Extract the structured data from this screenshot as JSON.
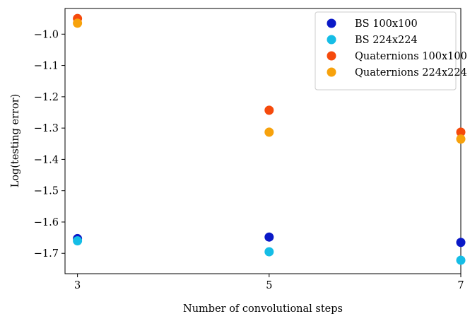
{
  "chart_data": {
    "type": "scatter",
    "title": "",
    "xlabel": "Number of convolutional steps",
    "ylabel": "Log(testing error)",
    "x": [
      3,
      5,
      7
    ],
    "xticks": [
      "3",
      "5",
      "7"
    ],
    "xlim": [
      2.87,
      7.0
    ],
    "yticks": [
      "−1.0",
      "−1.1",
      "−1.2",
      "−1.3",
      "−1.4",
      "−1.5",
      "−1.6",
      "−1.7"
    ],
    "ytick_values": [
      -1.0,
      -1.1,
      -1.2,
      -1.3,
      -1.4,
      -1.5,
      -1.6,
      -1.7
    ],
    "ylim": [
      -1.765,
      -0.918
    ],
    "grid": false,
    "legend_position": "top-right",
    "series": [
      {
        "name": "BS 100x100",
        "color": "#0a19c7",
        "values": [
          -1.653,
          -1.648,
          -1.665
        ]
      },
      {
        "name": "BS 224x224",
        "color": "#15bde6",
        "values": [
          -1.66,
          -1.695,
          -1.722
        ]
      },
      {
        "name": "Quaternions 100x100",
        "color": "#f54a0c",
        "values": [
          -0.95,
          -1.243,
          -1.313
        ]
      },
      {
        "name": "Quaternions 224x224",
        "color": "#f7a20c",
        "values": [
          -0.965,
          -1.313,
          -1.335
        ]
      }
    ]
  }
}
